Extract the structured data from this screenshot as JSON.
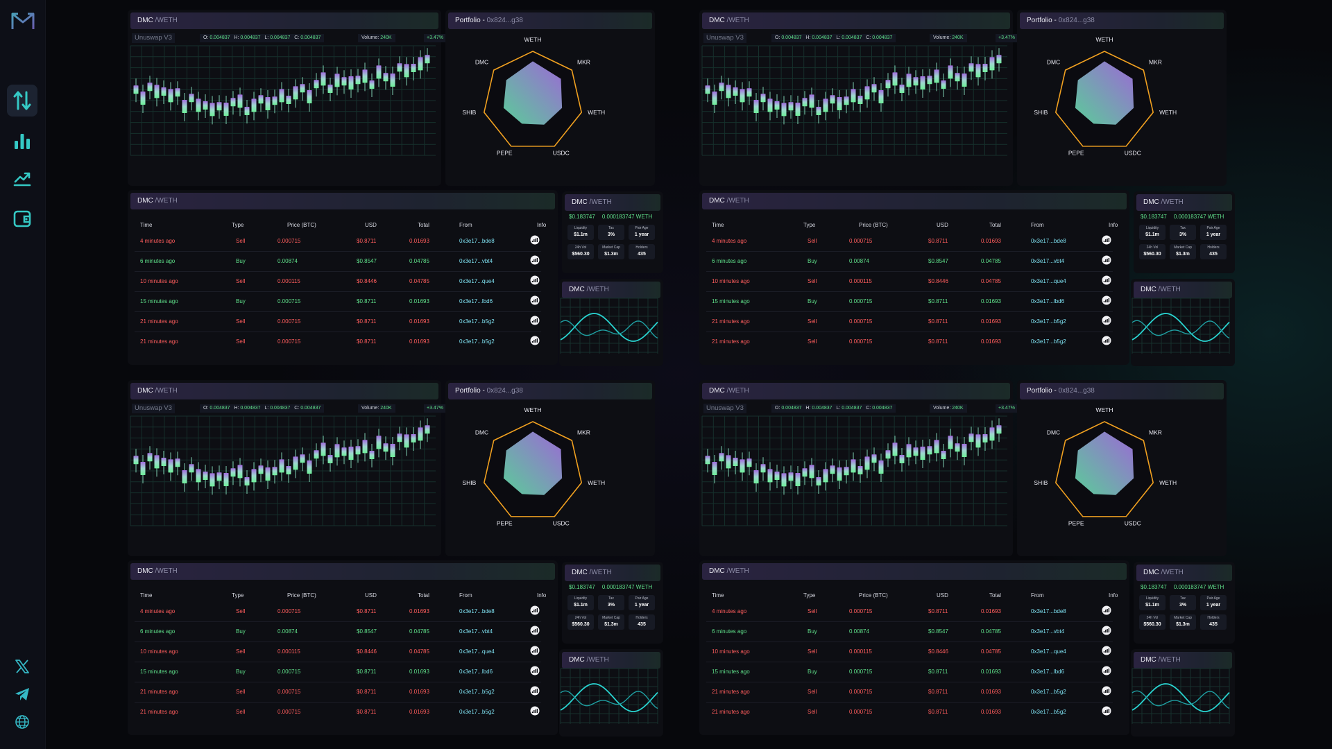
{
  "sidebar": {
    "logo": "dm-logo",
    "nav": [
      {
        "icon": "swap-arrows-icon",
        "active": true
      },
      {
        "icon": "bar-chart-icon",
        "active": false
      },
      {
        "icon": "trend-up-icon",
        "active": false
      },
      {
        "icon": "wallet-icon",
        "active": false
      }
    ],
    "social": [
      {
        "icon": "x-twitter-icon"
      },
      {
        "icon": "telegram-icon"
      },
      {
        "icon": "globe-icon"
      }
    ]
  },
  "pair": {
    "base": "DMC",
    "sep": " /",
    "quote": "WETH"
  },
  "chart": {
    "exchange": "Unuswap V3",
    "o_label": "O:",
    "o": "0.004837",
    "h_label": "H:",
    "h": "0.004837",
    "l_label": "L:",
    "l": "0.004837",
    "c_label": "C:",
    "c": "0.004837",
    "volume_label": "Volume:",
    "volume": "240K",
    "change": "+3.47%"
  },
  "portfolio": {
    "title": "Portfolio - ",
    "address": "0x824...g38",
    "axes": [
      {
        "label": "WETH",
        "value": 0.8
      },
      {
        "label": "MKR",
        "value": 0.72
      },
      {
        "label": "WETH",
        "value": 0.6
      },
      {
        "label": "USDC",
        "value": 0.52
      },
      {
        "label": "PEPE",
        "value": 0.5
      },
      {
        "label": "SHIB",
        "value": 0.6
      },
      {
        "label": "DMC",
        "value": 0.68
      }
    ]
  },
  "trades": {
    "columns": {
      "time": "Time",
      "type": "Type",
      "price": "Price (BTC)",
      "usd": "USD",
      "total": "Total",
      "from": "From",
      "info": "Info"
    },
    "rows": [
      {
        "time": "4 minutes ago",
        "type": "Sell",
        "price": "0.000715",
        "usd": "$0.8711",
        "total": "0.01693",
        "from": "0x3e17...bde8"
      },
      {
        "time": "6 minutes ago",
        "type": "Buy",
        "price": "0.00874",
        "usd": "$0.8547",
        "total": "0.04785",
        "from": "0x3e17...vbt4"
      },
      {
        "time": "10 minutes ago",
        "type": "Sell",
        "price": "0.000115",
        "usd": "$0.8446",
        "total": "0.04785",
        "from": "0x3e17...que4"
      },
      {
        "time": "15 minutes ago",
        "type": "Buy",
        "price": "0.000715",
        "usd": "$0.8711",
        "total": "0.01693",
        "from": "0x3e17...lbd6"
      },
      {
        "time": "21 minutes ago",
        "type": "Sell",
        "price": "0.000715",
        "usd": "$0.8711",
        "total": "0.01693",
        "from": "0x3e17...b5g2"
      },
      {
        "time": "21 minutes ago",
        "type": "Sell",
        "price": "0.000715",
        "usd": "$0.8711",
        "total": "0.01693",
        "from": "0x3e17...b5g2"
      }
    ]
  },
  "stats": {
    "price_usd": "$0.183747",
    "price_weth": "0.000183747 WETH",
    "items": [
      {
        "label": "Liquidity",
        "value": "$1.1m"
      },
      {
        "label": "Tax",
        "value": "3%"
      },
      {
        "label": "Pair Age",
        "value": "1 year"
      },
      {
        "label": "24h Vol",
        "value": "$560.30"
      },
      {
        "label": "Market Cap",
        "value": "$1.3m"
      },
      {
        "label": "Holders",
        "value": "435"
      }
    ]
  },
  "colors": {
    "up": "#5fe08a",
    "down": "#ff5d5d",
    "accent": "#9b6bd8",
    "teal": "#29d3d0",
    "radarBorder": "#f0a020"
  }
}
